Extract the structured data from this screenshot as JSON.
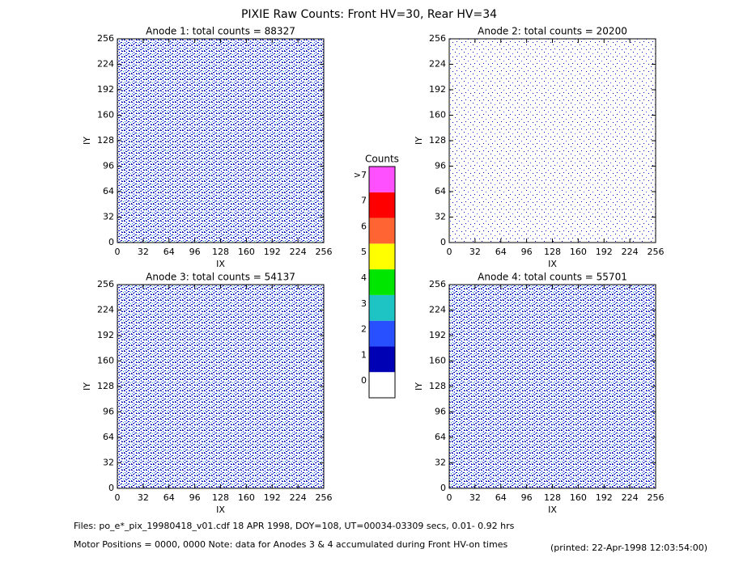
{
  "title": "PIXIE Raw Counts:  Front HV=30, Rear HV=34",
  "chart_data": [
    {
      "type": "heatmap",
      "title": "Anode 1: total counts = 88327",
      "xlabel": "IX",
      "ylabel": "IY",
      "xlim": [
        0,
        256
      ],
      "ylim": [
        0,
        256
      ],
      "xticks": [
        0,
        32,
        64,
        96,
        128,
        160,
        192,
        224,
        256
      ],
      "yticks": [
        0,
        32,
        64,
        96,
        128,
        160,
        192,
        224,
        256
      ]
    },
    {
      "type": "heatmap",
      "title": "Anode 2: total counts = 20200",
      "xlabel": "IX",
      "ylabel": "IY",
      "xlim": [
        0,
        256
      ],
      "ylim": [
        0,
        256
      ],
      "xticks": [
        0,
        32,
        64,
        96,
        128,
        160,
        192,
        224,
        256
      ],
      "yticks": [
        0,
        32,
        64,
        96,
        128,
        160,
        192,
        224,
        256
      ]
    },
    {
      "type": "heatmap",
      "title": "Anode 3: total counts = 54137",
      "xlabel": "IX",
      "ylabel": "IY",
      "xlim": [
        0,
        256
      ],
      "ylim": [
        0,
        256
      ],
      "xticks": [
        0,
        32,
        64,
        96,
        128,
        160,
        192,
        224,
        256
      ],
      "yticks": [
        0,
        32,
        64,
        96,
        128,
        160,
        192,
        224,
        256
      ]
    },
    {
      "type": "heatmap",
      "title": "Anode 4: total counts = 55701",
      "xlabel": "IX",
      "ylabel": "IY",
      "xlim": [
        0,
        256
      ],
      "ylim": [
        0,
        256
      ],
      "xticks": [
        0,
        32,
        64,
        96,
        128,
        160,
        192,
        224,
        256
      ],
      "yticks": [
        0,
        32,
        64,
        96,
        128,
        160,
        192,
        224,
        256
      ]
    }
  ],
  "colorbar": {
    "title": "Counts",
    "levels": [
      0,
      1,
      2,
      3,
      4,
      5,
      6,
      7,
      {
        "value": 8,
        "label": ">7"
      }
    ],
    "colors": [
      "#ffffff",
      "#0000b4",
      "#2850ff",
      "#1ec3c3",
      "#00e600",
      "#ffff00",
      "#ff6432",
      "#ff0000",
      "#ff50ff"
    ]
  },
  "footer": {
    "files": "Files: po_e*_pix_19980418_v01.cdf    18 APR 1998, DOY=108, UT=00034-03309 secs,  0.01- 0.92 hrs",
    "note": "Motor Positions = 0000, 0000   Note: data for Anodes 3 & 4 accumulated during Front HV-on times",
    "printed": "(printed: 22-Apr-1998 12:03:54:00)"
  }
}
